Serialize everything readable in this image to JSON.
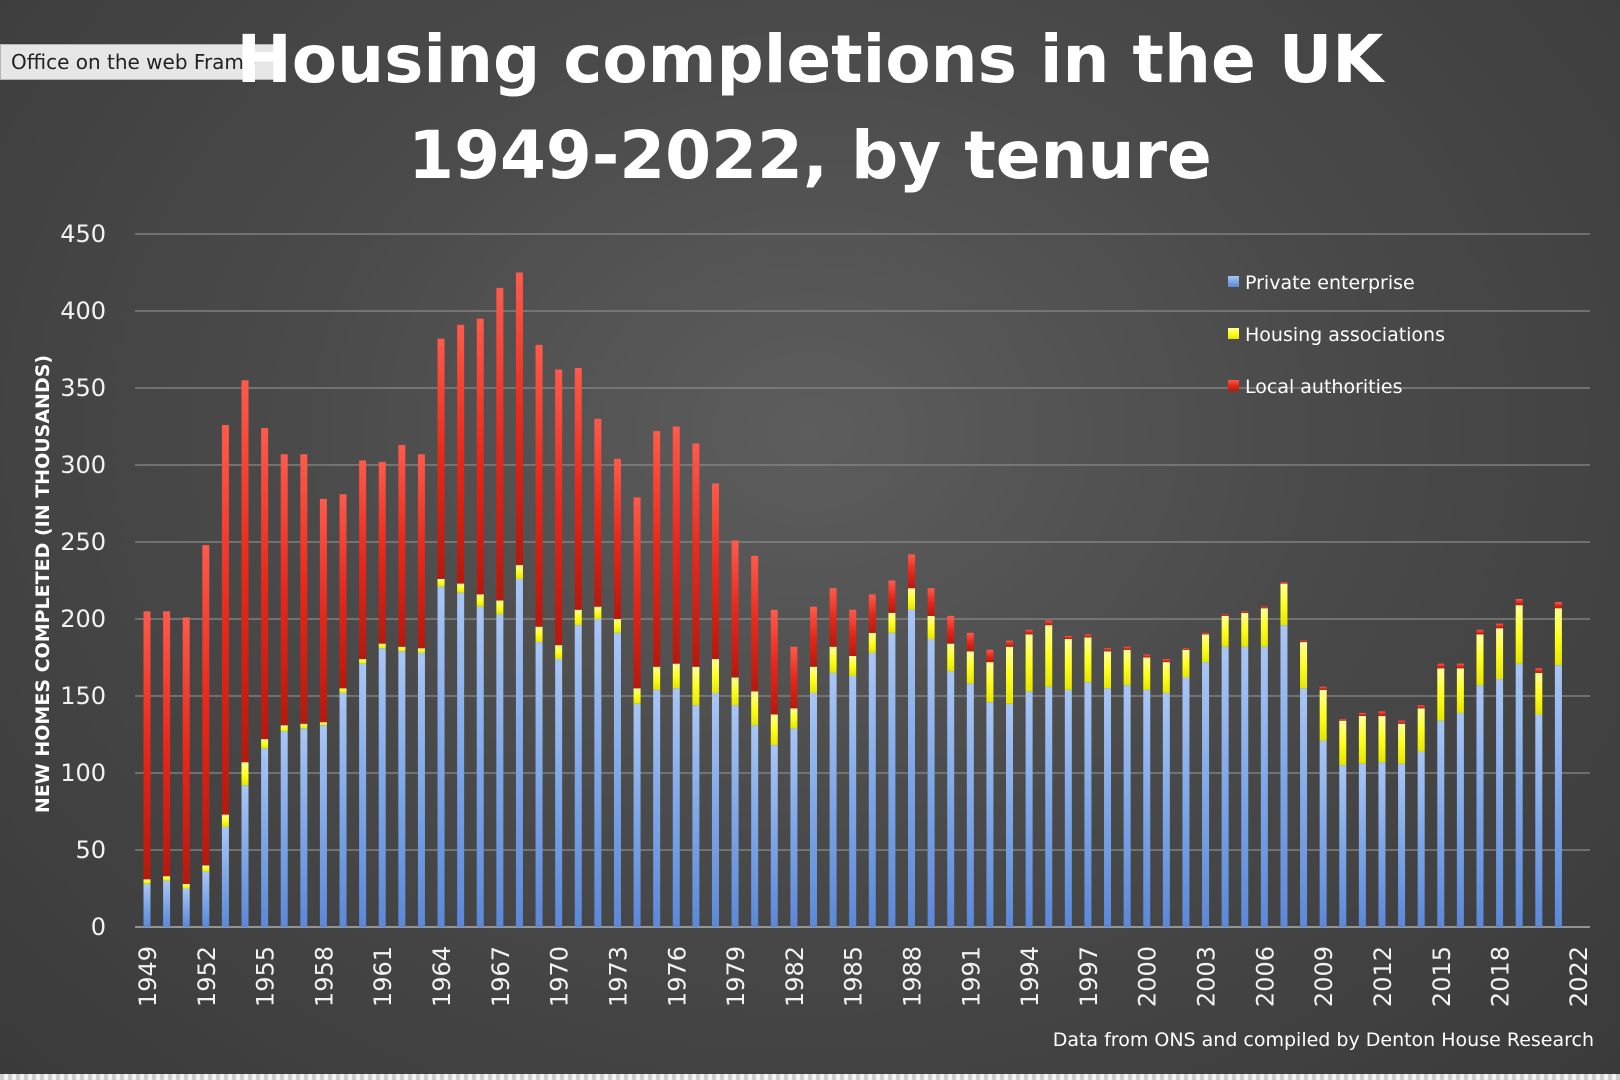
{
  "frame": {
    "label": "Office on the web Frame"
  },
  "colors": {
    "private": "#7ea7e8",
    "housing_associations": "#ffff1e",
    "local_authorities": "#e8281a",
    "gridline": "#8a8a8a",
    "text": "#ffffff"
  },
  "chart_data": {
    "type": "bar",
    "stacked": true,
    "title_lines": [
      "Housing completions in the UK",
      "1949-2022, by tenure"
    ],
    "xlabel": "",
    "ylabel": "NEW HOMES COMPLETED (IN THOUSANDS)",
    "ylim": [
      0,
      450
    ],
    "yticks": [
      0,
      50,
      100,
      150,
      200,
      250,
      300,
      350,
      400,
      450
    ],
    "grid": true,
    "legend_position": "top-right",
    "source": "Data from ONS and compiled by Denton House Research",
    "categories": [
      "1949",
      "1950",
      "1951",
      "1952",
      "1953",
      "1954",
      "1955",
      "1956",
      "1957",
      "1958",
      "1959",
      "1960",
      "1961",
      "1962",
      "1963",
      "1964",
      "1965",
      "1966",
      "1967",
      "1968",
      "1969",
      "1970",
      "1971",
      "1972",
      "1973",
      "1974",
      "1975",
      "1976",
      "1977",
      "1978",
      "1979",
      "1980",
      "1981",
      "1982",
      "1983",
      "1984",
      "1985",
      "1986",
      "1987",
      "1988",
      "1989",
      "1990",
      "1991",
      "1992",
      "1993",
      "1994",
      "1995",
      "1996",
      "1997",
      "1998",
      "1999",
      "2000",
      "2001",
      "2002",
      "2003",
      "2004",
      "2005",
      "2006",
      "2007",
      "2008",
      "2009",
      "2010",
      "2011",
      "2012",
      "2013",
      "2014",
      "2015",
      "2016",
      "2017",
      "2018",
      "2019",
      "2020",
      "2021",
      "2022"
    ],
    "labeled_categories": [
      "1949",
      "1952",
      "1955",
      "1958",
      "1961",
      "1964",
      "1967",
      "1970",
      "1973",
      "1976",
      "1979",
      "1982",
      "1985",
      "1988",
      "1991",
      "1994",
      "1997",
      "2000",
      "2003",
      "2006",
      "2009",
      "2012",
      "2015",
      "2018",
      "2022"
    ],
    "series": [
      {
        "name": "Private enterprise",
        "values": [
          28,
          30,
          25,
          36,
          65,
          92,
          116,
          127,
          129,
          131,
          152,
          171,
          181,
          179,
          178,
          221,
          217,
          208,
          203,
          226,
          185,
          174,
          196,
          200,
          191,
          145,
          154,
          155,
          144,
          152,
          144,
          131,
          118,
          129,
          152,
          165,
          163,
          178,
          191,
          206,
          187,
          166,
          158,
          146,
          145,
          153,
          156,
          154,
          159,
          155,
          157,
          154,
          152,
          162,
          172,
          182,
          182,
          182,
          196,
          155,
          121,
          105,
          106,
          107,
          106,
          114,
          134,
          139,
          157,
          161,
          171,
          138,
          170,
          0
        ],
        "legend": "Private enterprise"
      },
      {
        "name": "Housing associations",
        "values": [
          3,
          3,
          3,
          4,
          8,
          15,
          6,
          4,
          3,
          2,
          3,
          3,
          3,
          3,
          3,
          5,
          6,
          8,
          9,
          9,
          10,
          9,
          10,
          8,
          9,
          10,
          15,
          16,
          25,
          22,
          18,
          22,
          20,
          13,
          17,
          17,
          13,
          13,
          13,
          14,
          15,
          18,
          21,
          26,
          37,
          37,
          40,
          33,
          29,
          24,
          23,
          21,
          20,
          18,
          18,
          20,
          22,
          25,
          27,
          30,
          33,
          29,
          31,
          30,
          26,
          28,
          34,
          29,
          33,
          33,
          38,
          27,
          37,
          0
        ],
        "legend": "Housing associations"
      },
      {
        "name": "Local authorities",
        "values": [
          174,
          172,
          173,
          208,
          253,
          248,
          202,
          176,
          175,
          145,
          126,
          129,
          118,
          131,
          126,
          156,
          168,
          179,
          203,
          190,
          183,
          179,
          157,
          122,
          104,
          124,
          153,
          154,
          145,
          114,
          89,
          88,
          68,
          40,
          39,
          38,
          30,
          25,
          21,
          22,
          18,
          18,
          12,
          8,
          4,
          3,
          3,
          2,
          2,
          2,
          2,
          2,
          2,
          1,
          1,
          1,
          1,
          1,
          1,
          1,
          2,
          1,
          2,
          3,
          2,
          2,
          3,
          3,
          3,
          3,
          4,
          3,
          4,
          0
        ],
        "legend": "Local authorities"
      }
    ],
    "legend": [
      {
        "label": "Private enterprise"
      },
      {
        "label": "Housing associations"
      },
      {
        "label": "Local authorities"
      }
    ]
  }
}
